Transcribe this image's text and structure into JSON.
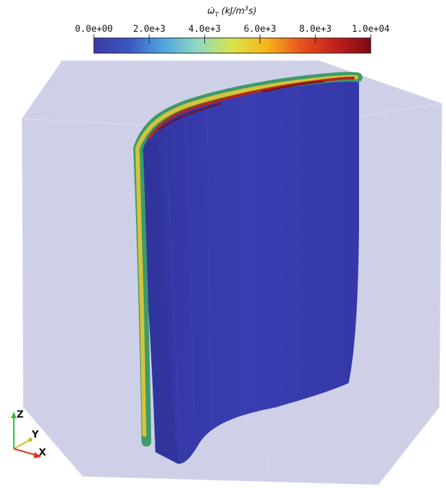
{
  "colorbar": {
    "title": {
      "symbol": "ω̇",
      "subscript": "T",
      "units": "(kJ/m",
      "exponent": "3",
      "units_end": "s)"
    },
    "range": [
      0,
      10000
    ],
    "ticks": [
      {
        "value": 0,
        "label": "0.0e+00"
      },
      {
        "value": 2000,
        "label": "2.0e+3"
      },
      {
        "value": 4000,
        "label": "4.0e+3"
      },
      {
        "value": 6000,
        "label": "6.0e+3"
      },
      {
        "value": 8000,
        "label": "8.0e+3"
      },
      {
        "value": 10000,
        "label": "1.0e+04"
      }
    ],
    "colormap": [
      "#3b3ba6",
      "#3b55c2",
      "#4fa6e0",
      "#8fd9c0",
      "#d9e44a",
      "#f7b31a",
      "#e8521c",
      "#c0201c",
      "#7a0c14"
    ]
  },
  "axes_triad": {
    "z": "Z",
    "y": "Y",
    "x": "X"
  }
}
